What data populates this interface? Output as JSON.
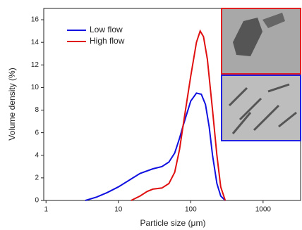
{
  "chart_data": {
    "type": "line",
    "xlabel": "Particle size (μm)",
    "ylabel": "Volume density (%)",
    "xscale": "log",
    "xlim": [
      0.93,
      3300
    ],
    "xticks": [
      1,
      10,
      100,
      1000
    ],
    "ylim": [
      0,
      17
    ],
    "yticks": [
      0,
      2,
      4,
      6,
      8,
      10,
      12,
      14,
      16
    ],
    "legend": "upper left",
    "series": [
      {
        "name": "Low flow",
        "color": "#1010e0",
        "x": [
          3.5,
          5,
          7,
          10,
          15,
          20,
          30,
          40,
          50,
          60,
          70,
          80,
          100,
          120,
          140,
          160,
          180,
          200,
          230,
          260,
          300
        ],
        "values": [
          0,
          0.3,
          0.7,
          1.2,
          1.9,
          2.4,
          2.8,
          3.0,
          3.4,
          4.2,
          5.5,
          6.8,
          8.8,
          9.5,
          9.4,
          8.5,
          6.5,
          4.0,
          1.5,
          0.4,
          0
        ]
      },
      {
        "name": "High flow",
        "color": "#e01010",
        "x": [
          15,
          20,
          25,
          30,
          40,
          50,
          60,
          70,
          80,
          100,
          120,
          135,
          150,
          170,
          200,
          230,
          260,
          300
        ],
        "values": [
          0,
          0.4,
          0.8,
          1.0,
          1.1,
          1.5,
          2.5,
          4.5,
          7.0,
          11.0,
          14.0,
          15.0,
          14.5,
          12.5,
          8.0,
          4.0,
          1.2,
          0
        ]
      }
    ]
  }
}
